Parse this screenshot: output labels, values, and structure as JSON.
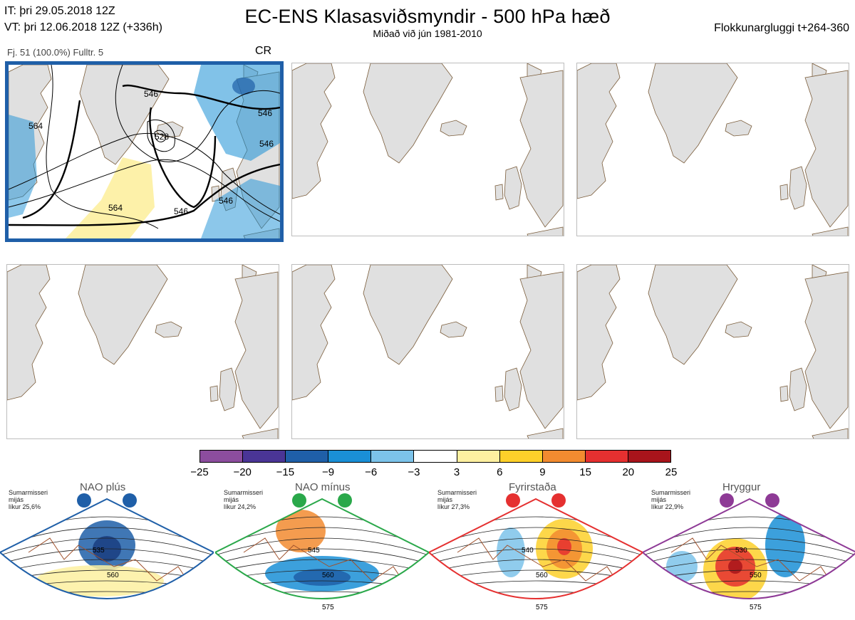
{
  "header": {
    "it_line": "IT: þri 29.05.2018 12Z",
    "vt_line": "VT: þri 12.06.2018 12Z  (+336h)",
    "title": "EC-ENS Klasasviðsmyndir - 500 hPa hæð",
    "subtitle": "Miðað við jún 1981-2010",
    "window": "Flokkunargluggi t+264-360"
  },
  "cluster": {
    "info": "Fj. 51 (100.0%)   Fulltr. 5",
    "regime_code": "CR",
    "contour_labels": [
      "546",
      "546",
      "546",
      "546",
      "546",
      "564",
      "564",
      "528"
    ]
  },
  "colorbar": {
    "colors": [
      "#8c4d9e",
      "#4a3596",
      "#1f5fa8",
      "#1a8fd6",
      "#7cc3ea",
      "#ffffff",
      "#fdf0a0",
      "#fdd02a",
      "#f28b30",
      "#e53030",
      "#a8141b"
    ],
    "ticks": [
      "−25",
      "−20",
      "−15",
      "−9",
      "−6",
      "−3",
      "3",
      "6",
      "9",
      "15",
      "20",
      "25"
    ]
  },
  "regimes": [
    {
      "name": "NAO plús",
      "season": "Sumarmisseri",
      "mean_label": "mijás",
      "likelihood": "líkur 25,6%",
      "color": "#1f5fa8",
      "labels": [
        "535",
        "560"
      ]
    },
    {
      "name": "NAO mínus",
      "season": "Sumarmisseri",
      "mean_label": "mijás",
      "likelihood": "líkur 24,2%",
      "color": "#2aa84a",
      "labels": [
        "545",
        "560",
        "575"
      ]
    },
    {
      "name": "Fyrirstaða",
      "season": "Sumarmisseri",
      "mean_label": "mijás",
      "likelihood": "líkur 27,3%",
      "color": "#e53030",
      "labels": [
        "540",
        "560",
        "575"
      ]
    },
    {
      "name": "Hryggur",
      "season": "Sumarmisseri",
      "mean_label": "mijás",
      "likelihood": "líkur 22,9%",
      "color": "#8e3a96",
      "labels": [
        "530",
        "550",
        "575"
      ]
    }
  ]
}
